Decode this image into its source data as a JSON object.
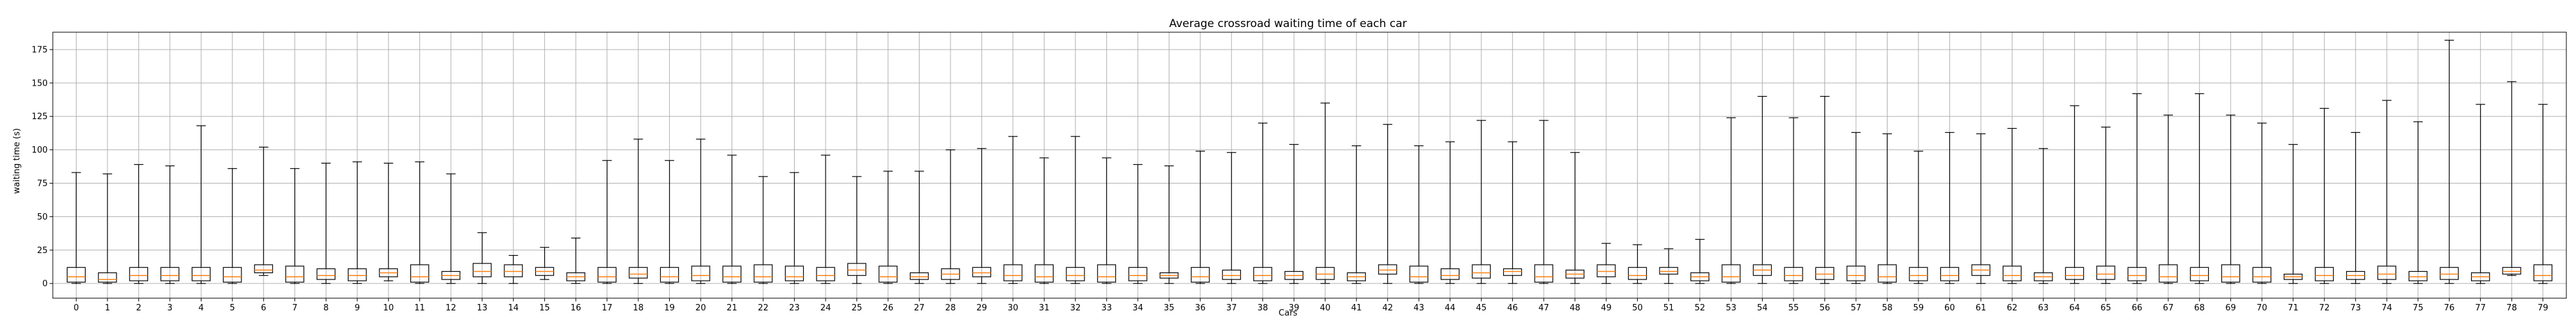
{
  "chart_data": {
    "type": "box",
    "title": "Average crossroad waiting time of each car",
    "xlabel": "Cars",
    "ylabel": "waiting time (s)",
    "ylim": [
      -11,
      188
    ],
    "yticks": [
      0,
      25,
      50,
      75,
      100,
      125,
      150,
      175
    ],
    "grid": true,
    "median_color": "#ff7f0e",
    "categories": [
      "0",
      "1",
      "2",
      "3",
      "4",
      "5",
      "6",
      "7",
      "8",
      "9",
      "10",
      "11",
      "12",
      "13",
      "14",
      "15",
      "16",
      "17",
      "18",
      "19",
      "20",
      "21",
      "22",
      "23",
      "24",
      "25",
      "26",
      "27",
      "28",
      "29",
      "30",
      "31",
      "32",
      "33",
      "34",
      "35",
      "36",
      "37",
      "38",
      "39",
      "40",
      "41",
      "42",
      "43",
      "44",
      "45",
      "46",
      "47",
      "48",
      "49",
      "50",
      "51",
      "52",
      "53",
      "54",
      "55",
      "56",
      "57",
      "58",
      "59",
      "60",
      "61",
      "62",
      "63",
      "64",
      "65",
      "66",
      "67",
      "68",
      "69",
      "70",
      "71",
      "72",
      "73",
      "74",
      "75",
      "76",
      "77",
      "78",
      "79"
    ],
    "boxes": [
      {
        "min": 0,
        "q1": 1,
        "median": 5,
        "q3": 12,
        "max": 83
      },
      {
        "min": 0,
        "q1": 1,
        "median": 3,
        "q3": 8,
        "max": 82
      },
      {
        "min": 0,
        "q1": 2,
        "median": 6,
        "q3": 12,
        "max": 89
      },
      {
        "min": 0,
        "q1": 2,
        "median": 6,
        "q3": 12,
        "max": 88
      },
      {
        "min": 0,
        "q1": 2,
        "median": 6,
        "q3": 12,
        "max": 118
      },
      {
        "min": 0,
        "q1": 1,
        "median": 5,
        "q3": 12,
        "max": 86
      },
      {
        "min": 6,
        "q1": 8,
        "median": 10,
        "q3": 14,
        "max": 102
      },
      {
        "min": 0,
        "q1": 1,
        "median": 5,
        "q3": 13,
        "max": 86
      },
      {
        "min": 0,
        "q1": 3,
        "median": 6,
        "q3": 11,
        "max": 90
      },
      {
        "min": 0,
        "q1": 2,
        "median": 6,
        "q3": 11,
        "max": 91
      },
      {
        "min": 2,
        "q1": 5,
        "median": 8,
        "q3": 11,
        "max": 90
      },
      {
        "min": 0,
        "q1": 1,
        "median": 5,
        "q3": 14,
        "max": 91
      },
      {
        "min": 0,
        "q1": 3,
        "median": 6,
        "q3": 9,
        "max": 82
      },
      {
        "min": 0,
        "q1": 5,
        "median": 9,
        "q3": 15,
        "max": 38
      },
      {
        "min": 0,
        "q1": 5,
        "median": 9,
        "q3": 14,
        "max": 21
      },
      {
        "min": 3,
        "q1": 6,
        "median": 9,
        "q3": 12,
        "max": 27
      },
      {
        "min": 0,
        "q1": 2,
        "median": 5,
        "q3": 8,
        "max": 34
      },
      {
        "min": 0,
        "q1": 1,
        "median": 5,
        "q3": 12,
        "max": 92
      },
      {
        "min": 0,
        "q1": 4,
        "median": 7,
        "q3": 12,
        "max": 108
      },
      {
        "min": 0,
        "q1": 1,
        "median": 5,
        "q3": 12,
        "max": 92
      },
      {
        "min": 0,
        "q1": 2,
        "median": 6,
        "q3": 13,
        "max": 108
      },
      {
        "min": 0,
        "q1": 1,
        "median": 5,
        "q3": 13,
        "max": 96
      },
      {
        "min": 0,
        "q1": 1,
        "median": 5,
        "q3": 14,
        "max": 80
      },
      {
        "min": 0,
        "q1": 2,
        "median": 5,
        "q3": 13,
        "max": 83
      },
      {
        "min": 0,
        "q1": 2,
        "median": 6,
        "q3": 12,
        "max": 96
      },
      {
        "min": 0,
        "q1": 6,
        "median": 10,
        "q3": 15,
        "max": 80
      },
      {
        "min": 0,
        "q1": 1,
        "median": 5,
        "q3": 13,
        "max": 84
      },
      {
        "min": 0,
        "q1": 3,
        "median": 5,
        "q3": 8,
        "max": 84
      },
      {
        "min": 0,
        "q1": 3,
        "median": 7,
        "q3": 11,
        "max": 100
      },
      {
        "min": 0,
        "q1": 5,
        "median": 8,
        "q3": 12,
        "max": 101
      },
      {
        "min": 0,
        "q1": 2,
        "median": 6,
        "q3": 14,
        "max": 110
      },
      {
        "min": 0,
        "q1": 1,
        "median": 5,
        "q3": 14,
        "max": 94
      },
      {
        "min": 0,
        "q1": 2,
        "median": 6,
        "q3": 12,
        "max": 110
      },
      {
        "min": 0,
        "q1": 1,
        "median": 5,
        "q3": 14,
        "max": 94
      },
      {
        "min": 0,
        "q1": 2,
        "median": 6,
        "q3": 12,
        "max": 89
      },
      {
        "min": 0,
        "q1": 4,
        "median": 6,
        "q3": 8,
        "max": 88
      },
      {
        "min": 0,
        "q1": 1,
        "median": 5,
        "q3": 12,
        "max": 99
      },
      {
        "min": 0,
        "q1": 3,
        "median": 6,
        "q3": 10,
        "max": 98
      },
      {
        "min": 0,
        "q1": 2,
        "median": 6,
        "q3": 12,
        "max": 120
      },
      {
        "min": 0,
        "q1": 3,
        "median": 6,
        "q3": 9,
        "max": 104
      },
      {
        "min": 0,
        "q1": 3,
        "median": 7,
        "q3": 12,
        "max": 135
      },
      {
        "min": 0,
        "q1": 2,
        "median": 5,
        "q3": 8,
        "max": 103
      },
      {
        "min": 0,
        "q1": 7,
        "median": 10,
        "q3": 14,
        "max": 119
      },
      {
        "min": 0,
        "q1": 1,
        "median": 5,
        "q3": 13,
        "max": 103
      },
      {
        "min": 0,
        "q1": 3,
        "median": 6,
        "q3": 11,
        "max": 106
      },
      {
        "min": 0,
        "q1": 4,
        "median": 8,
        "q3": 14,
        "max": 122
      },
      {
        "min": 0,
        "q1": 6,
        "median": 9,
        "q3": 11,
        "max": 106
      },
      {
        "min": 0,
        "q1": 1,
        "median": 5,
        "q3": 14,
        "max": 122
      },
      {
        "min": 0,
        "q1": 4,
        "median": 7,
        "q3": 10,
        "max": 98
      },
      {
        "min": 0,
        "q1": 5,
        "median": 9,
        "q3": 14,
        "max": 30
      },
      {
        "min": 0,
        "q1": 3,
        "median": 6,
        "q3": 12,
        "max": 29
      },
      {
        "min": 0,
        "q1": 7,
        "median": 9,
        "q3": 12,
        "max": 26
      },
      {
        "min": 0,
        "q1": 2,
        "median": 5,
        "q3": 8,
        "max": 33
      },
      {
        "min": 0,
        "q1": 1,
        "median": 5,
        "q3": 14,
        "max": 124
      },
      {
        "min": 0,
        "q1": 6,
        "median": 10,
        "q3": 14,
        "max": 140
      },
      {
        "min": 0,
        "q1": 2,
        "median": 6,
        "q3": 12,
        "max": 124
      },
      {
        "min": 0,
        "q1": 3,
        "median": 7,
        "q3": 12,
        "max": 140
      },
      {
        "min": 0,
        "q1": 2,
        "median": 6,
        "q3": 13,
        "max": 113
      },
      {
        "min": 0,
        "q1": 1,
        "median": 5,
        "q3": 14,
        "max": 112
      },
      {
        "min": 0,
        "q1": 2,
        "median": 6,
        "q3": 12,
        "max": 99
      },
      {
        "min": 0,
        "q1": 2,
        "median": 6,
        "q3": 12,
        "max": 113
      },
      {
        "min": 0,
        "q1": 6,
        "median": 10,
        "q3": 14,
        "max": 112
      },
      {
        "min": 0,
        "q1": 2,
        "median": 6,
        "q3": 13,
        "max": 116
      },
      {
        "min": 0,
        "q1": 2,
        "median": 5,
        "q3": 8,
        "max": 101
      },
      {
        "min": 0,
        "q1": 3,
        "median": 6,
        "q3": 12,
        "max": 133
      },
      {
        "min": 0,
        "q1": 3,
        "median": 7,
        "q3": 13,
        "max": 117
      },
      {
        "min": 0,
        "q1": 2,
        "median": 6,
        "q3": 12,
        "max": 142
      },
      {
        "min": 0,
        "q1": 1,
        "median": 5,
        "q3": 14,
        "max": 126
      },
      {
        "min": 0,
        "q1": 2,
        "median": 6,
        "q3": 12,
        "max": 142
      },
      {
        "min": 0,
        "q1": 1,
        "median": 5,
        "q3": 14,
        "max": 126
      },
      {
        "min": 0,
        "q1": 1,
        "median": 5,
        "q3": 12,
        "max": 120
      },
      {
        "min": 0,
        "q1": 3,
        "median": 5,
        "q3": 7,
        "max": 104
      },
      {
        "min": 0,
        "q1": 2,
        "median": 6,
        "q3": 12,
        "max": 131
      },
      {
        "min": 0,
        "q1": 3,
        "median": 6,
        "q3": 9,
        "max": 113
      },
      {
        "min": 0,
        "q1": 3,
        "median": 7,
        "q3": 13,
        "max": 137
      },
      {
        "min": 0,
        "q1": 2,
        "median": 5,
        "q3": 9,
        "max": 121
      },
      {
        "min": 0,
        "q1": 3,
        "median": 7,
        "q3": 12,
        "max": 182
      },
      {
        "min": 0,
        "q1": 2,
        "median": 5,
        "q3": 8,
        "max": 134
      },
      {
        "min": 6,
        "q1": 7,
        "median": 9,
        "q3": 12,
        "max": 151
      },
      {
        "min": 0,
        "q1": 2,
        "median": 6,
        "q3": 14,
        "max": 134
      }
    ]
  }
}
